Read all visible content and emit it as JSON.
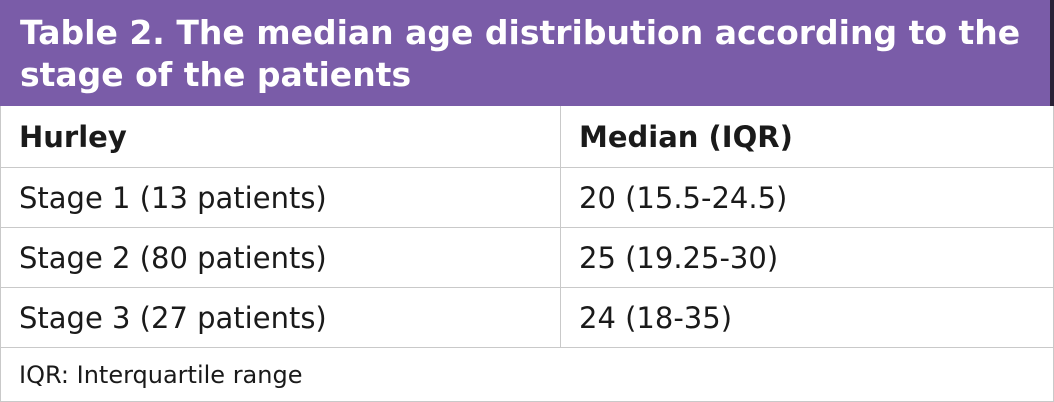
{
  "title": "Table 2. The median age distribution according to the stage of the patients",
  "table": {
    "headers": [
      "Hurley",
      "Median (IQR)"
    ],
    "rows": [
      [
        "Stage 1 (13 patients)",
        "20 (15.5-24.5)"
      ],
      [
        "Stage 2 (80 patients)",
        "25 (19.25-30)"
      ],
      [
        "Stage 3 (27 patients)",
        "24 (18-35)"
      ]
    ]
  },
  "footnote": "IQR: Interquartile range",
  "colors": {
    "title_background": "#7a5ca8",
    "title_text": "#ffffff",
    "border": "#c9c9c9"
  }
}
